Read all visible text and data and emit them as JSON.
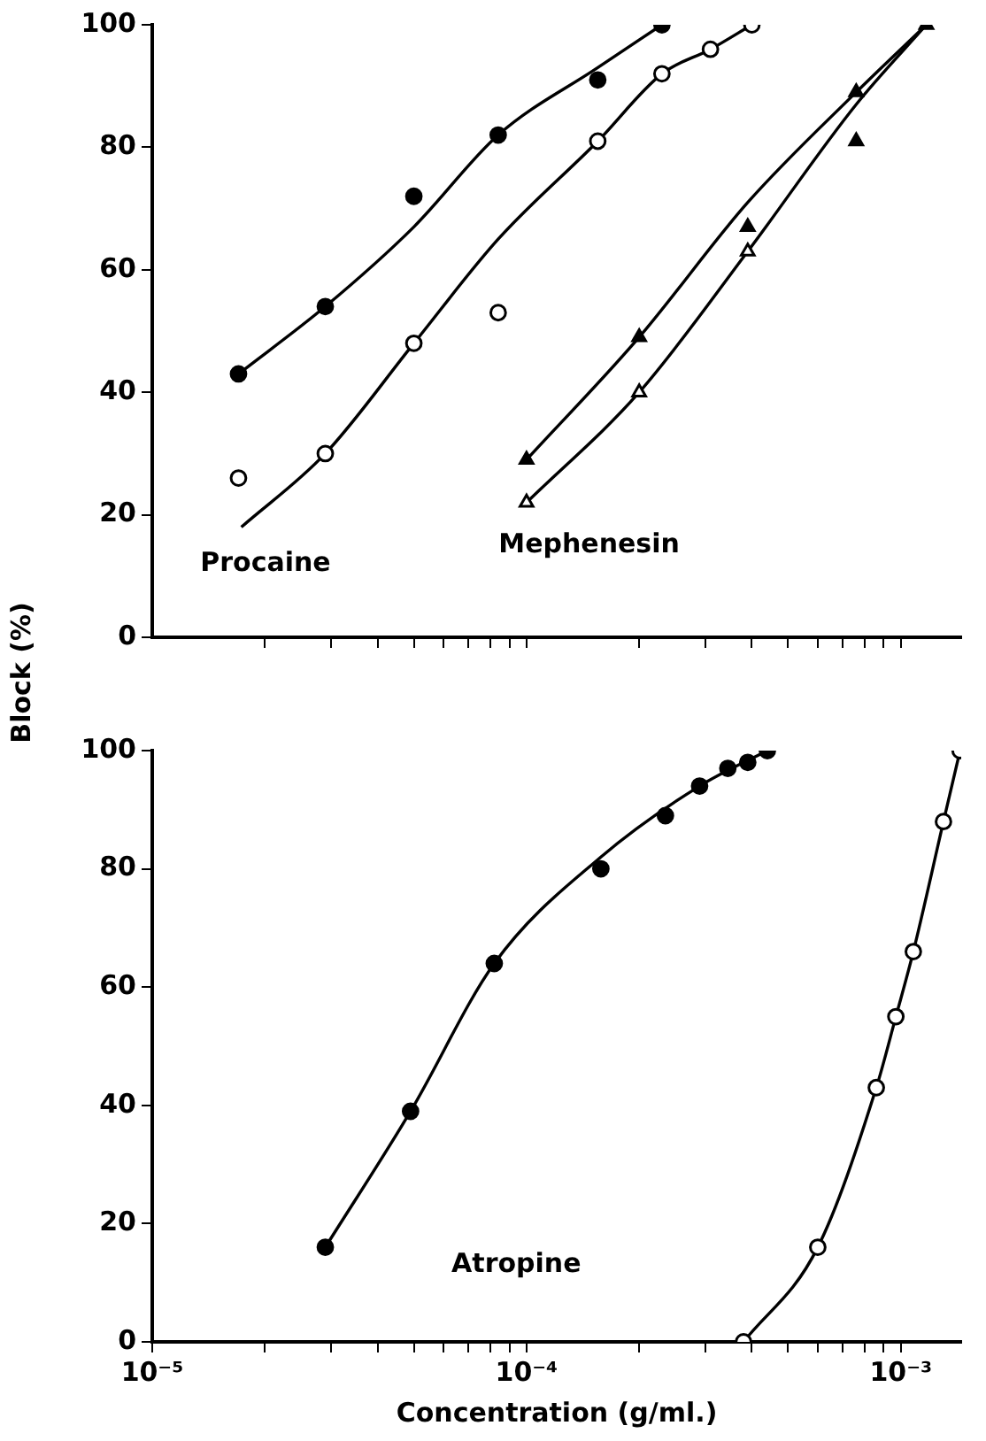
{
  "chart_data": [
    {
      "type": "scatter",
      "ylabel": "Block (%)",
      "xlim": [
        1e-05,
        0.00145
      ],
      "ylim": [
        0,
        100
      ],
      "yticks": [
        0,
        20,
        40,
        60,
        80,
        100
      ],
      "log": "x",
      "grid": false,
      "legend": false,
      "tick_labels": "y",
      "xticks": [
        {
          "value": 2e-05,
          "label": null
        },
        {
          "value": 3e-05,
          "label": null
        },
        {
          "value": 4e-05,
          "label": null
        },
        {
          "value": 5e-05,
          "label": null
        },
        {
          "value": 6e-05,
          "label": null
        },
        {
          "value": 7e-05,
          "label": null
        },
        {
          "value": 8e-05,
          "label": null
        },
        {
          "value": 9e-05,
          "label": null
        },
        {
          "value": 0.0001,
          "label": null
        },
        {
          "value": 0.0002,
          "label": null
        },
        {
          "value": 0.0003,
          "label": null
        },
        {
          "value": 0.0004,
          "label": null
        },
        {
          "value": 0.0005,
          "label": null
        },
        {
          "value": 0.0006,
          "label": null
        },
        {
          "value": 0.0007,
          "label": null
        },
        {
          "value": 0.0008,
          "label": null
        },
        {
          "value": 0.0009,
          "label": null
        },
        {
          "value": 0.001,
          "label": null
        }
      ],
      "series": [
        {
          "type": "scatter",
          "marker": "circle",
          "color": "#000000",
          "x": [
            1.7e-05,
            2.9e-05,
            5e-05,
            8.4e-05,
            0.000155,
            0.00023
          ],
          "values": [
            43,
            54,
            72,
            82,
            91,
            100
          ]
        },
        {
          "type": "scatter",
          "marker": "circle",
          "color": "#ffffff",
          "x": [
            1.7e-05,
            2.9e-05,
            5e-05,
            8.4e-05,
            0.000155,
            0.00023,
            0.00031,
            0.0004
          ],
          "values": [
            26,
            30,
            48,
            53,
            81,
            92,
            96,
            100
          ]
        },
        {
          "type": "scatter",
          "marker": "triangle",
          "color": "#000000",
          "x": [
            0.0001,
            0.0002,
            0.00039,
            0.00076,
            0.00076,
            0.00117
          ],
          "values": [
            29,
            49,
            67,
            89,
            81,
            100
          ]
        },
        {
          "type": "scatter",
          "marker": "triangle",
          "color": "#ffffff",
          "x": [
            0.0001,
            0.0002,
            0.00039
          ],
          "values": [
            22,
            40,
            63
          ]
        },
        {
          "type": "line",
          "marker": "none",
          "color": "#000000",
          "x": [
            1.7e-05,
            2.9e-05,
            5e-05,
            8.4e-05,
            0.000155,
            0.00023
          ],
          "values": [
            43,
            54,
            67,
            82,
            93,
            100
          ]
        },
        {
          "type": "line",
          "marker": "none",
          "color": "#000000",
          "x": [
            1.73e-05,
            2.9e-05,
            5e-05,
            8.4e-05,
            0.000155,
            0.00023,
            0.00031,
            0.0004
          ],
          "values": [
            18,
            30,
            48,
            65,
            81,
            92,
            96,
            100
          ]
        },
        {
          "type": "line",
          "marker": "none",
          "color": "#000000",
          "x": [
            0.0001,
            0.0002,
            0.00039,
            0.00076,
            0.00117
          ],
          "values": [
            29,
            49,
            71,
            89,
            100
          ]
        },
        {
          "type": "line",
          "marker": "none",
          "color": "#000000",
          "x": [
            0.0001,
            0.0002,
            0.00039,
            0.00076,
            0.00117
          ],
          "values": [
            22,
            40,
            63,
            87,
            100
          ]
        }
      ],
      "annotations": [
        "Procaine",
        "Mephenesin"
      ]
    },
    {
      "type": "scatter",
      "xlabel": "Concentration (g/ml.)",
      "xlim": [
        1e-05,
        0.00145
      ],
      "ylim": [
        0,
        100
      ],
      "yticks": [
        0,
        20,
        40,
        60,
        80,
        100
      ],
      "log": "x",
      "grid": false,
      "legend": false,
      "xticks": [
        {
          "value": 1e-05,
          "label": "10⁻⁵"
        },
        {
          "value": 2e-05,
          "label": null
        },
        {
          "value": 3e-05,
          "label": null
        },
        {
          "value": 4e-05,
          "label": null
        },
        {
          "value": 5e-05,
          "label": null
        },
        {
          "value": 6e-05,
          "label": null
        },
        {
          "value": 7e-05,
          "label": null
        },
        {
          "value": 8e-05,
          "label": null
        },
        {
          "value": 9e-05,
          "label": null
        },
        {
          "value": 0.0001,
          "label": "10⁻⁴"
        },
        {
          "value": 0.0002,
          "label": null
        },
        {
          "value": 0.0003,
          "label": null
        },
        {
          "value": 0.0004,
          "label": null
        },
        {
          "value": 0.0005,
          "label": null
        },
        {
          "value": 0.0006,
          "label": null
        },
        {
          "value": 0.0007,
          "label": null
        },
        {
          "value": 0.0008,
          "label": null
        },
        {
          "value": 0.0009,
          "label": null
        },
        {
          "value": 0.001,
          "label": "10⁻³"
        }
      ],
      "series": [
        {
          "type": "scatter",
          "marker": "circle",
          "color": "#000000",
          "x": [
            2.9e-05,
            4.9e-05,
            8.2e-05,
            0.000158,
            0.000235,
            0.00029,
            0.000345,
            0.00039,
            0.00044
          ],
          "values": [
            16,
            39,
            64,
            80,
            89,
            94,
            97,
            98,
            100
          ]
        },
        {
          "type": "scatter",
          "marker": "circle",
          "color": "#ffffff",
          "x": [
            0.00038,
            0.0006,
            0.00086,
            0.00097,
            0.00108,
            0.0013,
            0.00144
          ],
          "values": [
            0,
            16,
            43,
            55,
            66,
            88,
            100
          ]
        },
        {
          "type": "line",
          "marker": "none",
          "color": "#000000",
          "x": [
            2.9e-05,
            4.9e-05,
            8.2e-05,
            0.000158,
            0.00029,
            0.00044
          ],
          "values": [
            16,
            39,
            64,
            82,
            94,
            100
          ]
        },
        {
          "type": "line",
          "marker": "none",
          "color": "#000000",
          "x": [
            0.00038,
            0.0006,
            0.00086,
            0.00097,
            0.00108,
            0.0013,
            0.00144
          ],
          "values": [
            0,
            16,
            43,
            55,
            66,
            88,
            100
          ]
        }
      ],
      "annotations": [
        "Atropine"
      ]
    }
  ]
}
